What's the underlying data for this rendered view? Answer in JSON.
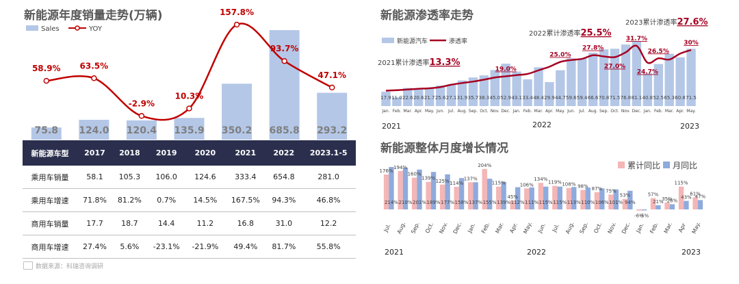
{
  "panel1": {
    "title": "新能源年度销量走势(万辆)",
    "legend": {
      "bar": "Sales",
      "line": "YOY"
    },
    "table": {
      "header": [
        "新能源车型",
        "2017",
        "2018",
        "2019",
        "2020",
        "2021",
        "2022",
        "2023.1-5"
      ],
      "rows": [
        [
          "乘用车销量",
          "58.1",
          "105.3",
          "106.0",
          "124.6",
          "333.4",
          "654.8",
          "281.0"
        ],
        [
          "乘用车增速",
          "71.8%",
          "81.2%",
          "0.7%",
          "14.5%",
          "167.5%",
          "94.3%",
          "46.8%"
        ],
        [
          "商用车销量",
          "17.7",
          "18.7",
          "14.4",
          "11.2",
          "16.8",
          "31.0",
          "12.2"
        ],
        [
          "商用车增速",
          "27.4%",
          "5.6%",
          "-23.1%",
          "-21.9%",
          "49.4%",
          "81.7%",
          "55.8%"
        ]
      ]
    },
    "source": "数据来源：科瑞咨询调研"
  },
  "panel2": {
    "title": "新能源渗透率走势",
    "legend": {
      "bar": "新能源汽车",
      "line": "渗透率"
    },
    "annotations": [
      {
        "label": "2021累计渗透率",
        "value": "13.3%"
      },
      {
        "label": "2022累计渗透率",
        "value": "25.5%"
      },
      {
        "label": "2023累计渗透率",
        "value": "27.6%"
      }
    ],
    "years": [
      "2021",
      "2022",
      "2023"
    ]
  },
  "panel3": {
    "title": "新能源整体月度增长情况",
    "legend": {
      "a": "累计同比",
      "b": "月同比"
    },
    "years": [
      "2021",
      "2022",
      "2023"
    ]
  },
  "chart_data": [
    {
      "type": "bar",
      "title": "新能源年度销量走势(万辆)",
      "categories": [
        "2017",
        "2018",
        "2019",
        "2020",
        "2021",
        "2022",
        "2023.1-5"
      ],
      "series": [
        {
          "name": "Sales",
          "type": "bar",
          "values": [
            75.8,
            124.0,
            120.4,
            135.9,
            350.2,
            685.8,
            293.2
          ],
          "color": "#b4c7e7"
        },
        {
          "name": "YOY",
          "type": "line",
          "values": [
            58.9,
            63.5,
            -2.9,
            10.3,
            157.8,
            93.7,
            47.1
          ],
          "labels": [
            "58.9%",
            "63.5%",
            "-2.9%",
            "10.3%",
            "157.8%",
            "93.7%",
            "47.1%"
          ],
          "color": "#c00000"
        }
      ],
      "ylim": [
        0,
        700
      ],
      "legend": "top-left"
    },
    {
      "type": "bar",
      "title": "新能源渗透率走势",
      "categories": [
        "Jan.",
        "Feb.",
        "Mar.",
        "Apr.",
        "May.",
        "Jun.",
        "Jul.",
        "Aug.",
        "Sep.",
        "Oct.",
        "Nov.",
        "Dec.",
        "Jan.",
        "Feb.",
        "Mar.",
        "Apr.",
        "May.",
        "Jun.",
        "Jul.",
        "Aug.",
        "Sep.",
        "Oct.",
        "Nov.",
        "Dec.",
        "Jan.",
        "Feb.",
        "Mar.",
        "Apr.",
        "May."
      ],
      "series": [
        {
          "name": "新能源汽车",
          "type": "bar",
          "values": [
            17.9,
            11.0,
            22.6,
            20.6,
            21.7,
            25.6,
            27.1,
            31.9,
            35.7,
            38.3,
            45.0,
            52.9,
            43.1,
            33.4,
            48.4,
            29.9,
            44.7,
            59.6,
            59.4,
            66.6,
            70.8,
            71.5,
            76.8,
            81.1,
            40.8,
            52.5,
            65.3,
            60.8,
            71.5
          ],
          "color": "#b4c7e7"
        },
        {
          "name": "渗透率",
          "type": "line",
          "values": [
            13,
            13.2,
            13.5,
            13.8,
            14,
            14.5,
            15.5,
            16.2,
            16.8,
            17.6,
            18.5,
            19.0,
            19.5,
            20,
            21.5,
            23,
            25.0,
            25.8,
            26.3,
            27.8,
            27.3,
            27.0,
            29,
            31.7,
            24.7,
            26.5,
            26,
            28.5,
            30
          ],
          "labels": {
            "11": "19.0%",
            "16": "25.0%",
            "19": "27.8%",
            "21": "27.0%",
            "23": "31.7%",
            "24": "24.7%",
            "25": "26.5%",
            "28": "30%"
          },
          "color": "#a50021"
        }
      ],
      "x_groups": [
        "2021",
        "2022",
        "2023"
      ],
      "legend": "top-left"
    },
    {
      "type": "bar",
      "title": "新能源整体月度增长情况",
      "categories": [
        "Jul.",
        "Aug.",
        "Sep.",
        "Oct.",
        "Nov.",
        "Dec.",
        "Jan.",
        "Feb.",
        "Mar.",
        "Apr.",
        "May.",
        "Jun.",
        "Jul.",
        "Aug.",
        "Sep.",
        "Oct.",
        "Nov.",
        "Dec.",
        "Jan.",
        "Feb.",
        "Mar.",
        "Apr",
        "May."
      ],
      "series": [
        {
          "name": "累计同比",
          "values": [
            176,
            194,
            160,
            139,
            125,
            114,
            137,
            204,
            115,
            45,
            106,
            134,
            119,
            108,
            98,
            87,
            75,
            53,
            -6,
            57,
            35,
            115,
            61
          ],
          "color": "#f4b6b6"
        },
        {
          "name": "月同比",
          "values": [
            214,
            210,
            201,
            189,
            177,
            158,
            137,
            155,
            139,
            112,
            111,
            115,
            115,
            113,
            110,
            106,
            101,
            94,
            -5,
            21,
            26,
            43,
            47
          ],
          "color": "#8faadc"
        }
      ],
      "x_groups": [
        "2021",
        "2022",
        "2023"
      ],
      "legend": "top-right"
    }
  ]
}
